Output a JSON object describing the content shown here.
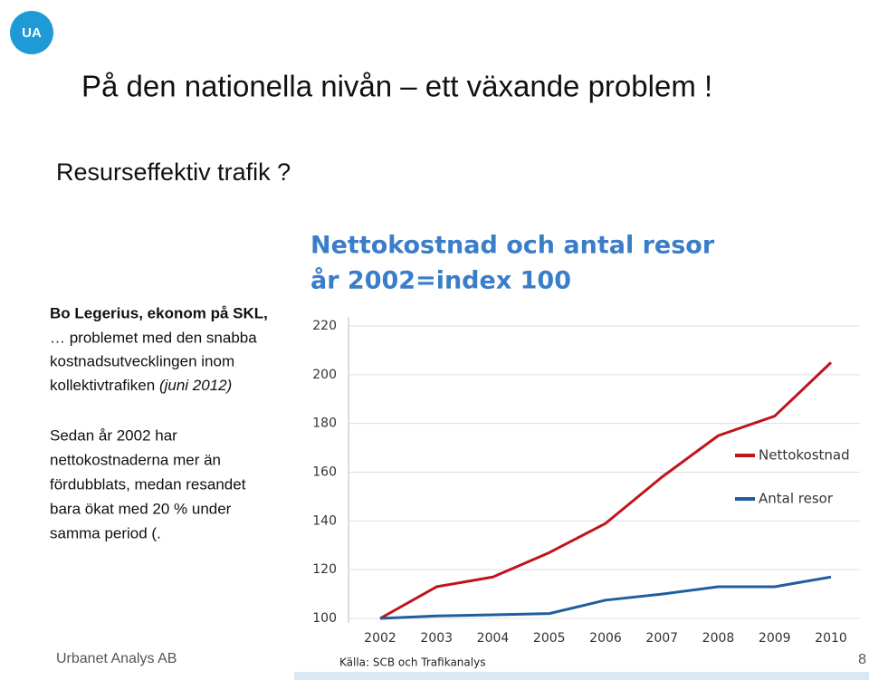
{
  "logo": "UA",
  "heading": "På den nationella nivån – ett växande problem !",
  "subheading": "Resurseffektiv trafik ?",
  "quote": {
    "author": "Bo Legerius, ekonom på SKL,",
    "lines": [
      "… problemet med den snabba",
      "kostnadsutvecklingen inom",
      "kollektivtrafiken"
    ],
    "date": "(juni 2012)"
  },
  "comment": [
    "Sedan år 2002 har",
    "nettokostnaderna mer än",
    "fördubblats, medan resandet",
    "bara ökat med 20 % under",
    "samma period (."
  ],
  "footer": "Urbanet Analys AB",
  "page_number": "8",
  "chart_data": {
    "type": "line",
    "title": [
      "Nettokostnad och antal resor",
      "år 2002=index 100"
    ],
    "categories": [
      "2002",
      "2003",
      "2004",
      "2005",
      "2006",
      "2007",
      "2008",
      "2009",
      "2010"
    ],
    "series": [
      {
        "name": "Nettokostnad",
        "color": "#c0141c",
        "values": [
          100,
          113,
          117,
          127,
          139,
          158,
          175,
          183,
          205
        ]
      },
      {
        "name": "Antal resor",
        "color": "#1f5f9e",
        "values": [
          100,
          101,
          101.5,
          102,
          107.5,
          110,
          113,
          113,
          117
        ]
      }
    ],
    "ylim": [
      100,
      220
    ],
    "yticks": [
      100,
      120,
      140,
      160,
      180,
      200,
      220
    ],
    "grid": true,
    "legend": "right",
    "source": "Källa: SCB och Trafikanalys"
  }
}
